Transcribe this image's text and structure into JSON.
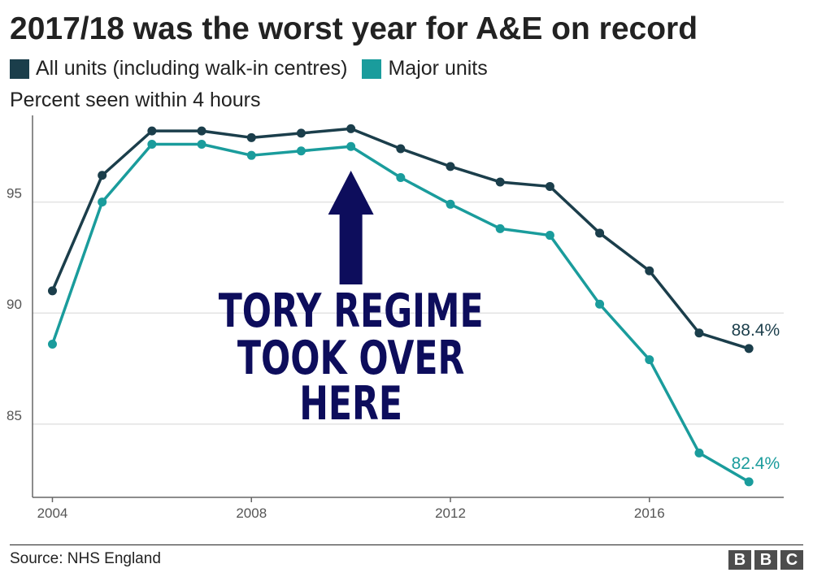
{
  "title": "2017/18 was the worst year for A&E on record",
  "subtitle": "Percent seen within 4 hours",
  "source": "Source: NHS England",
  "logo": [
    "B",
    "B",
    "C"
  ],
  "colors": {
    "all_units": "#1b3e4b",
    "major_units": "#1a9c9c",
    "annotation": "#0d0d5c",
    "gridline": "#e3e3e3",
    "axis": "#666666"
  },
  "annotation": {
    "lines": [
      "TORY REGIME",
      "TOOK OVER",
      "HERE"
    ],
    "arrow_icon": "up-arrow-icon",
    "points_to_x": 2010
  },
  "chart_data": {
    "type": "line",
    "title": "2017/18 was the worst year for A&E on record",
    "ylabel": "Percent seen within 4 hours",
    "xlabel": "",
    "xlim": [
      2003.6,
      2018.7
    ],
    "ylim": [
      81.7,
      98.9
    ],
    "x_ticks": [
      2004,
      2008,
      2012,
      2016
    ],
    "y_ticks": [
      85,
      90,
      95
    ],
    "grid": true,
    "legend": "top-left",
    "x": [
      2004,
      2005,
      2006,
      2007,
      2008,
      2009,
      2010,
      2011,
      2012,
      2013,
      2014,
      2015,
      2016,
      2017,
      2018
    ],
    "series": [
      {
        "name": "All units (including walk-in centres)",
        "key": "all_units",
        "values": [
          91.0,
          96.2,
          98.2,
          98.2,
          97.9,
          98.1,
          98.3,
          97.4,
          96.6,
          95.9,
          95.7,
          93.6,
          91.9,
          89.1,
          88.4
        ],
        "end_label": "88.4%"
      },
      {
        "name": "Major units",
        "key": "major_units",
        "values": [
          88.6,
          95.0,
          97.6,
          97.6,
          97.1,
          97.3,
          97.5,
          96.1,
          94.9,
          93.8,
          93.5,
          90.4,
          87.9,
          83.7,
          82.4
        ],
        "end_label": "82.4%"
      }
    ]
  }
}
